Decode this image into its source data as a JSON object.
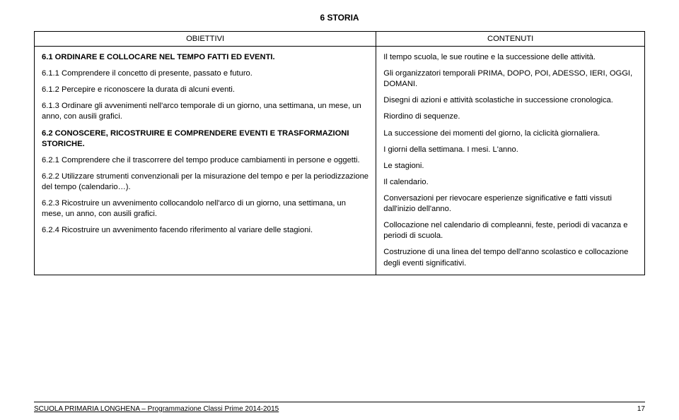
{
  "title": "6 STORIA",
  "headers": {
    "left": "OBIETTIVI",
    "right": "CONTENUTI"
  },
  "objectives": {
    "s1": {
      "head": "6.1 ORDINARE E COLLOCARE NEL TEMPO FATTI ED EVENTI.",
      "i1": "6.1.1 Comprendere il concetto di presente, passato e futuro.",
      "i2": "6.1.2 Percepire e riconoscere la durata di alcuni eventi.",
      "i3": "6.1.3 Ordinare gli avvenimenti nell'arco temporale di un giorno, una settimana, un mese, un anno, con ausili grafici."
    },
    "s2": {
      "head": "6.2 CONOSCERE, RICOSTRUIRE E COMPRENDERE EVENTI E TRASFORMAZIONI STORICHE.",
      "i1": "6.2.1 Comprendere che il trascorrere del tempo produce cambiamenti in persone e oggetti.",
      "i2": "6.2.2 Utilizzare strumenti convenzionali per la misurazione del tempo e per la periodizzazione del tempo (calendario…).",
      "i3": "6.2.3 Ricostruire un avvenimento collocandolo nell'arco di un giorno, una settimana, un mese, un anno, con ausili grafici.",
      "i4": "6.2.4 Ricostruire un avvenimento facendo riferimento al variare delle stagioni."
    }
  },
  "contents": {
    "c1": "Il tempo scuola, le sue routine e la successione delle attività.",
    "c2": "Gli organizzatori temporali PRIMA, DOPO, POI, ADESSO, IERI, OGGI, DOMANI.",
    "c3": "Disegni di azioni e attività scolastiche in successione cronologica.",
    "c4": "Riordino di sequenze.",
    "c5": "La successione dei momenti del giorno, la ciclicità giornaliera.",
    "c6": "I giorni della settimana. I mesi. L'anno.",
    "c7": "Le stagioni.",
    "c8": "Il calendario.",
    "c9": "Conversazioni per rievocare esperienze significative e fatti vissuti dall'inizio dell'anno.",
    "c10": "Collocazione nel calendario di compleanni, feste, periodi di vacanza e periodi di scuola.",
    "c11": "Costruzione di una linea del tempo dell'anno scolastico e collocazione degli eventi significativi."
  },
  "footer": {
    "text": "SCUOLA PRIMARIA LONGHENA – Programmazione Classi Prime 2014-2015",
    "page": "17"
  }
}
